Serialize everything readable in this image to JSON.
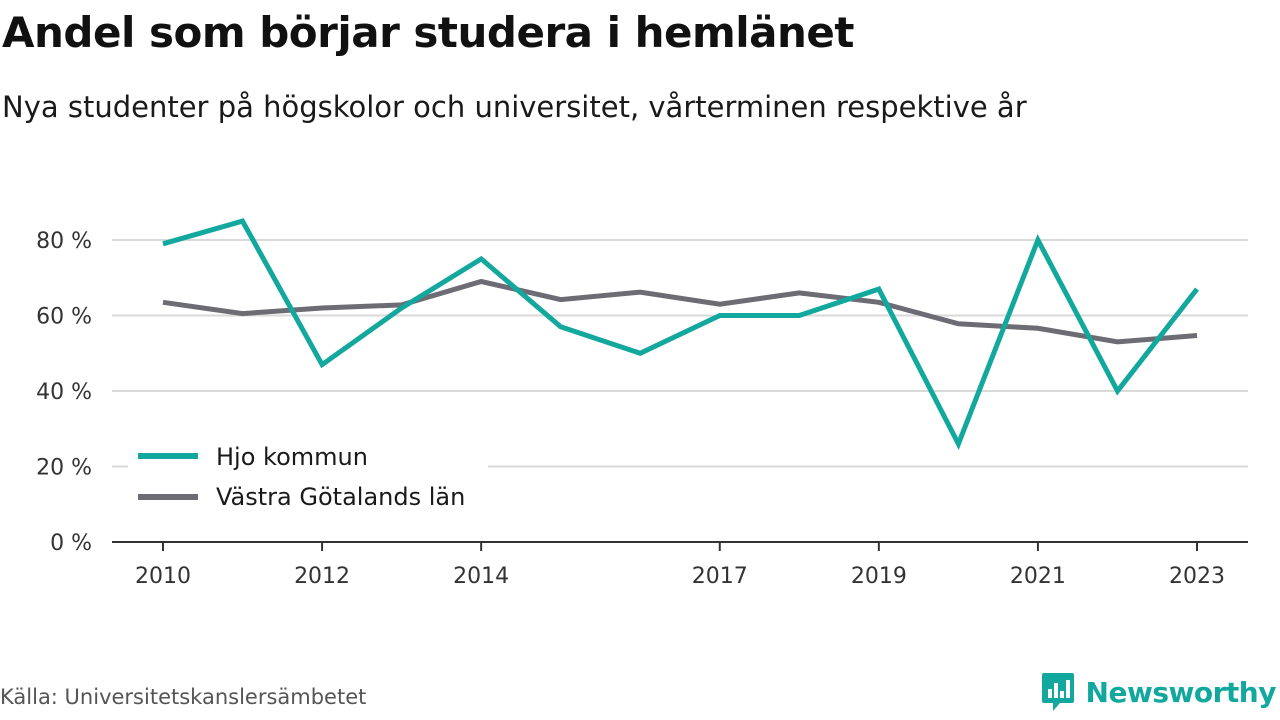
{
  "header": {
    "title": "Andel som börjar studera i hemlänet",
    "subtitle": "Nya studenter på högskolor och universitet, vårterminen respektive år"
  },
  "footer": {
    "source": "Källa: Universitetskanslersämbetet",
    "brand": "Newsworthy"
  },
  "colors": {
    "hjo": "#13a89e",
    "vgl": "#6d6c74",
    "grid": "#d9d9d9",
    "axis": "#333333",
    "brand": "#13a89e"
  },
  "chart_data": {
    "type": "line",
    "x": [
      2010,
      2011,
      2012,
      2013,
      2014,
      2015,
      2016,
      2017,
      2018,
      2019,
      2020,
      2021,
      2022,
      2023
    ],
    "x_tick_labels": [
      "2010",
      "2012",
      "2014",
      "2017",
      "2019",
      "2021",
      "2023"
    ],
    "y_ticks": [
      0,
      20,
      40,
      60,
      80
    ],
    "y_tick_labels": [
      "0 %",
      "20 %",
      "40 %",
      "60 %",
      "80 %"
    ],
    "ylim": [
      0,
      90
    ],
    "grid": true,
    "legend_position": "bottom-left",
    "series": [
      {
        "name": "Hjo kommun",
        "color": "#13a89e",
        "values": [
          79,
          85,
          47,
          62,
          75,
          57,
          50,
          60,
          60,
          67,
          26,
          80,
          40,
          67
        ]
      },
      {
        "name": "Västra Götalands län",
        "color": "#6d6c74",
        "values": [
          63.5,
          60.5,
          62,
          62.8,
          69,
          64.2,
          66.2,
          63,
          66,
          63.5,
          57.8,
          56.6,
          53,
          54.7
        ]
      }
    ]
  }
}
